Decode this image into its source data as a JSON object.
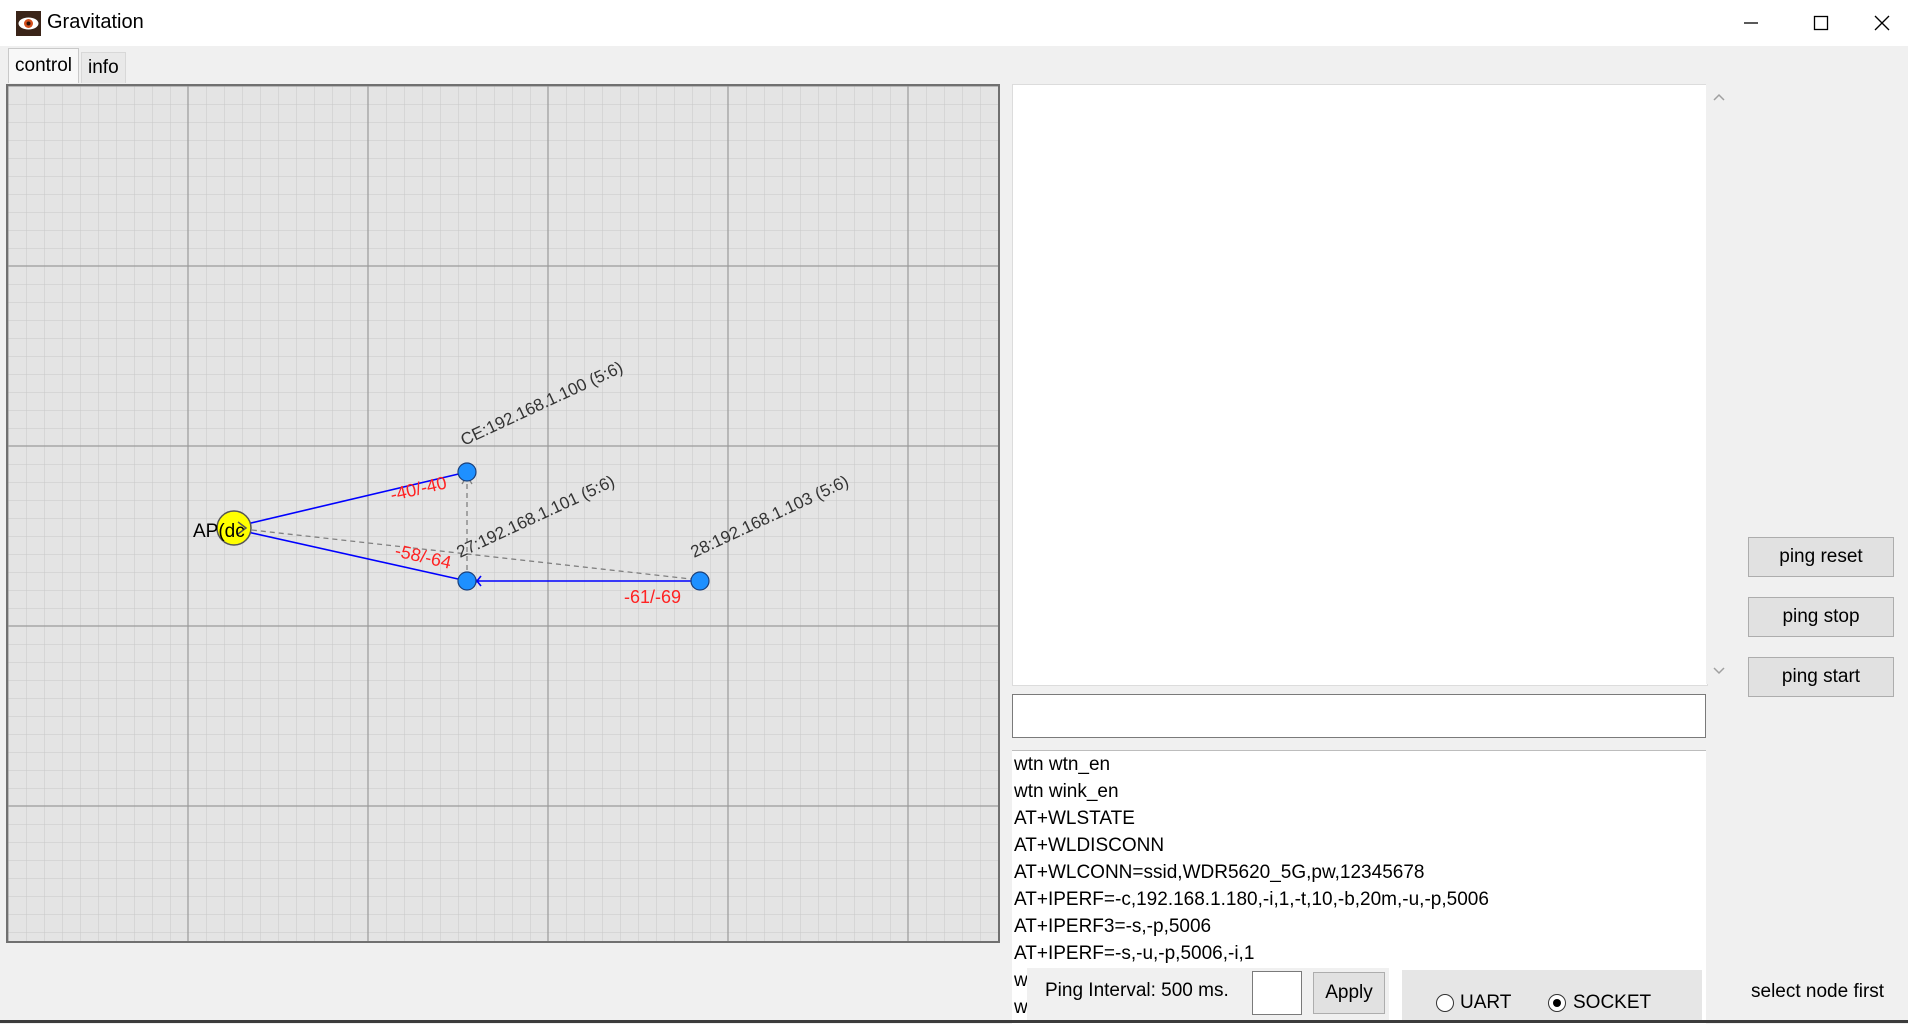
{
  "window": {
    "title": "Gravitation"
  },
  "tabs": [
    {
      "label": "control",
      "active": true
    },
    {
      "label": "info",
      "active": false
    }
  ],
  "graph": {
    "ap": {
      "label": "AP(dc"
    },
    "nodes": [
      {
        "label": "CE:192.168.1.100 (5:6)"
      },
      {
        "label": "27:192.168.1.101 (5:6)"
      },
      {
        "label": "28:192.168.1.103 (5:6)"
      }
    ],
    "links": [
      {
        "rssi": "-40/-40"
      },
      {
        "rssi": "-58/-64"
      },
      {
        "rssi": "-61/-69"
      }
    ],
    "colors": {
      "ap": "#ffff00",
      "node": "#1e90ff",
      "link": "#0000ff",
      "rssi": "#ff2222",
      "dashed": "#808080"
    }
  },
  "command_input": {
    "value": ""
  },
  "commands": [
    "wtn wtn_en",
    "wtn wink_en",
    "AT+WLSTATE",
    "AT+WLDISCONN",
    "AT+WLCONN=ssid,WDR5620_5G,pw,12345678",
    "AT+IPERF=-c,192.168.1.180,-i,1,-t,10,-b,20m,-u,-p,5006",
    "AT+IPERF3=-s,-p,5006",
    "AT+IPERF=-s,-u,-p,5006,-i,1",
    "w",
    "w"
  ],
  "buttons": {
    "ping_reset": "ping reset",
    "ping_stop": "ping stop",
    "ping_start": "ping start",
    "apply": "Apply"
  },
  "ping": {
    "label": "Ping Interval: 500 ms.",
    "value": ""
  },
  "connection": {
    "options": [
      {
        "label": "UART",
        "checked": false
      },
      {
        "label": "SOCKET",
        "checked": true
      }
    ]
  },
  "status": "select node first"
}
